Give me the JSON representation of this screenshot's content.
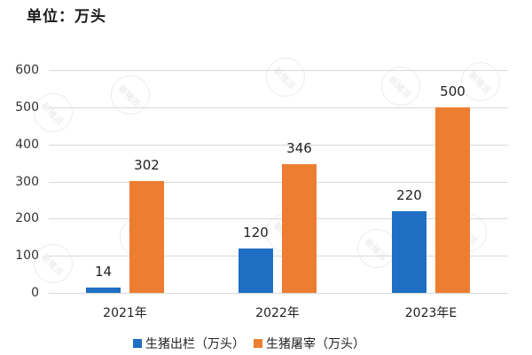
{
  "header": {
    "unit_label": "单位：万头",
    "top_right_text": "⋯⋯⋯ ⋯⋯"
  },
  "watermark_text": "新猪派",
  "colors": {
    "series_0": "#1f6fc4",
    "series_1": "#ed7d31",
    "grid": "#d9d9d9"
  },
  "chart_data": {
    "type": "bar",
    "title": "",
    "unit": "单位：万头",
    "xlabel": "",
    "ylabel": "",
    "ylim": [
      0,
      600
    ],
    "yticks": [
      0,
      100,
      200,
      300,
      400,
      500,
      600
    ],
    "grid": true,
    "legend_position": "bottom",
    "categories": [
      "2021年",
      "2022年",
      "2023年E"
    ],
    "series": [
      {
        "name": "生猪出栏（万头）",
        "values": [
          14,
          120,
          220
        ]
      },
      {
        "name": "生猪屠宰（万头）",
        "values": [
          302,
          346,
          500
        ]
      }
    ]
  }
}
